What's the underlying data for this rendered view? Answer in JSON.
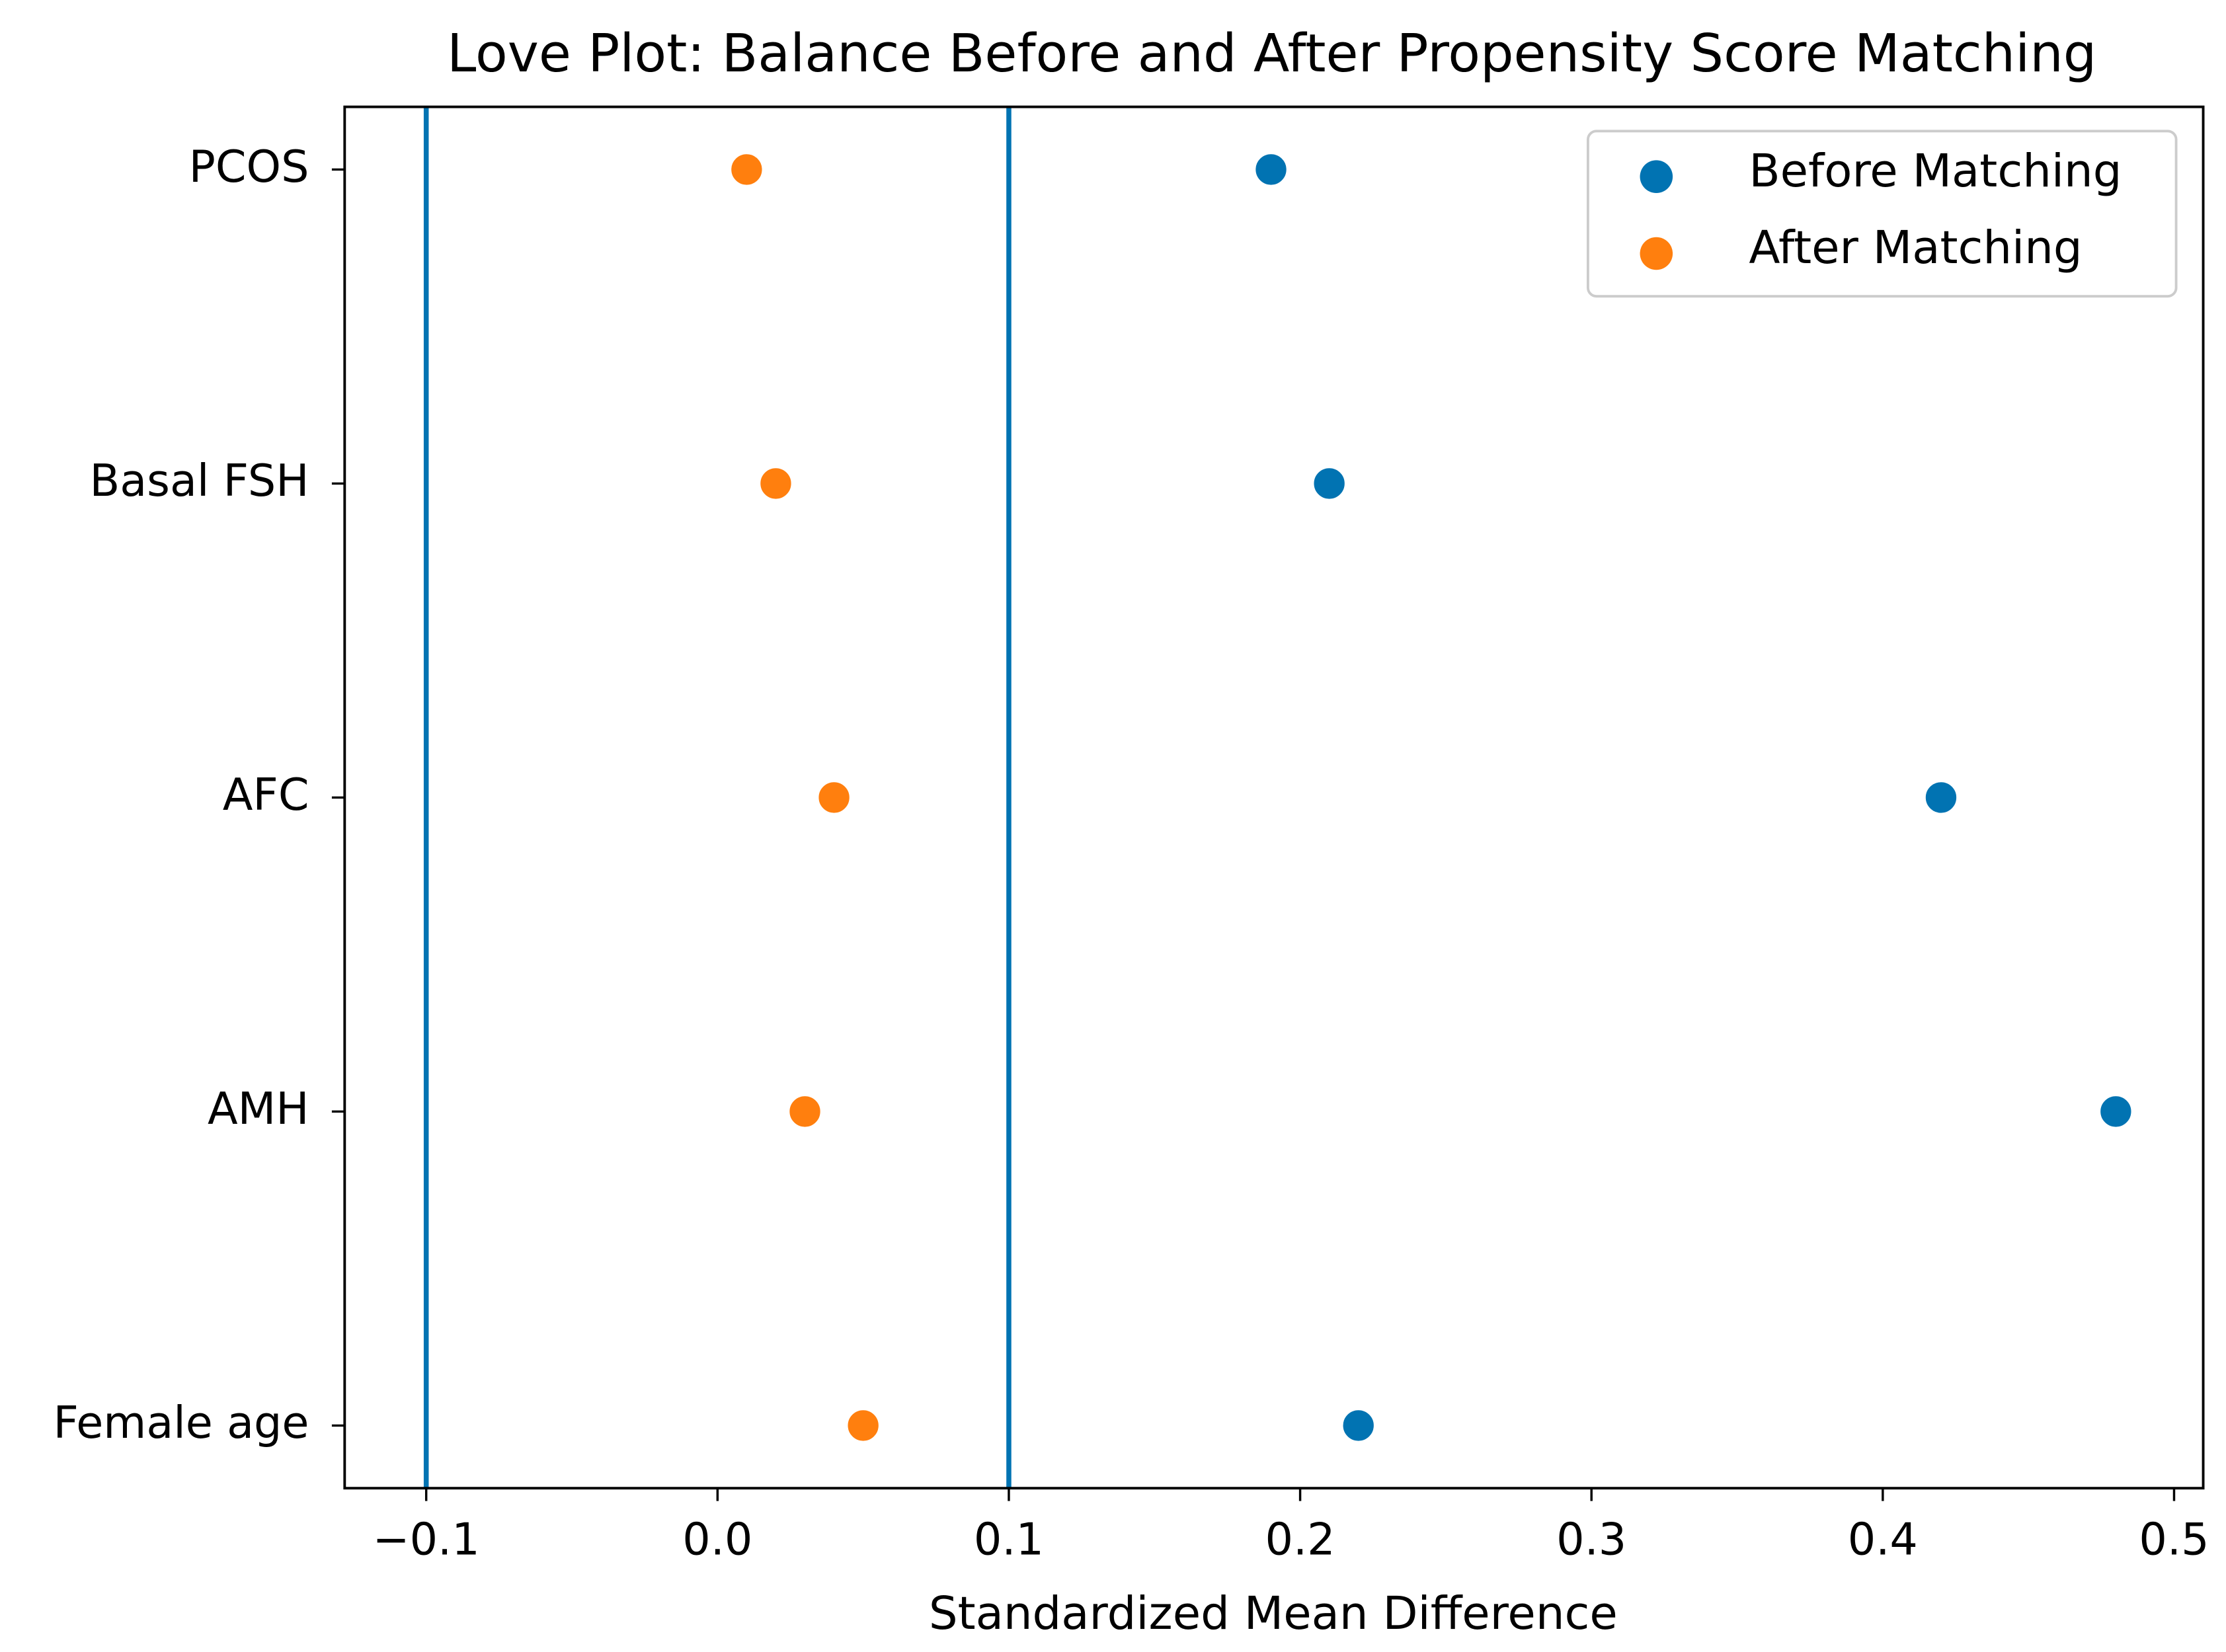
{
  "chart_data": {
    "type": "scatter",
    "title": "Love Plot: Balance Before and After Propensity Score Matching",
    "x_label": "Standardized Mean Difference",
    "categories": [
      "PCOS",
      "Basal FSH",
      "AFC",
      "AMH",
      "Female age"
    ],
    "series": [
      {
        "name": "Before Matching",
        "color": "#0173b2",
        "values": [
          0.19,
          0.21,
          0.42,
          0.48,
          0.22
        ]
      },
      {
        "name": "After Matching",
        "color": "#ff7f0e",
        "values": [
          0.01,
          0.02,
          0.04,
          0.03,
          0.05
        ]
      }
    ],
    "reference_lines": [
      -0.1,
      0.1
    ],
    "reference_color": "#0173b2",
    "xlim": [
      -0.128,
      0.51
    ],
    "xticks": [
      {
        "value": -0.1,
        "label": "−0.1"
      },
      {
        "value": 0,
        "label": "0.0"
      },
      0.1,
      0.2,
      0.3,
      0.4,
      0.5
    ],
    "legend": "upper right"
  }
}
